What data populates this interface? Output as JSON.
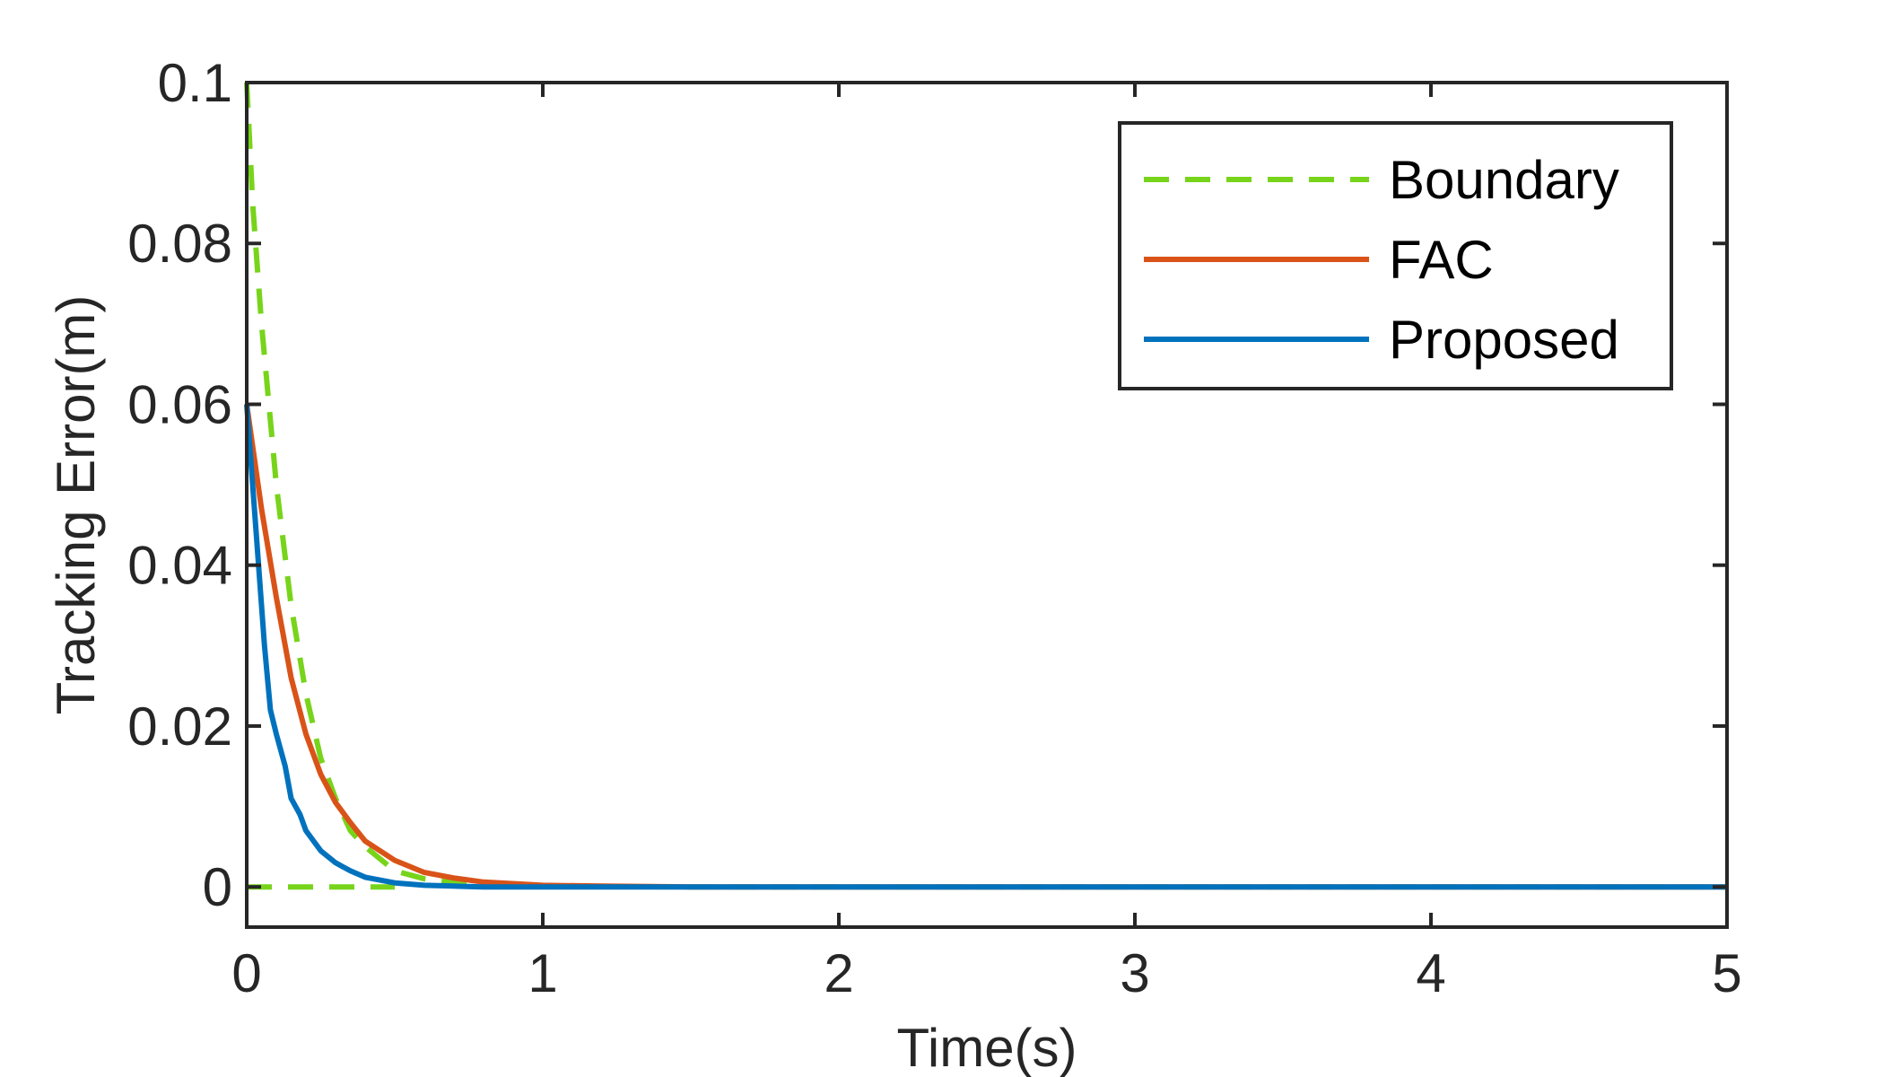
{
  "chart_data": {
    "type": "line",
    "title": "",
    "xlabel": "Time(s)",
    "ylabel": "Tracking Error(m)",
    "xlim": [
      0,
      5
    ],
    "ylim": [
      -0.005,
      0.1
    ],
    "x_ticks": [
      0,
      1,
      2,
      3,
      4,
      5
    ],
    "x_tick_labels": [
      "0",
      "1",
      "2",
      "3",
      "4",
      "5"
    ],
    "y_ticks": [
      0,
      0.02,
      0.04,
      0.06,
      0.08,
      0.1
    ],
    "y_tick_labels": [
      "0",
      "0.02",
      "0.04",
      "0.06",
      "0.08",
      "0.1"
    ],
    "grid": false,
    "legend_position": "top-right",
    "series": [
      {
        "name": "Boundary",
        "style": "dashed",
        "color": "#77d41b",
        "x": [
          0,
          0.02,
          0.05,
          0.1,
          0.15,
          0.2,
          0.25,
          0.3,
          0.35,
          0.4,
          0.5,
          0.6,
          0.7,
          0.8,
          1.0,
          1.5,
          2,
          3,
          4,
          5
        ],
        "y": [
          0.1,
          0.085,
          0.07,
          0.05,
          0.035,
          0.024,
          0.016,
          0.011,
          0.007,
          0.005,
          0.002,
          0.001,
          0.0005,
          0.0002,
          0.0001,
          0,
          0,
          0,
          0,
          0
        ]
      },
      {
        "name": "Boundary lower",
        "style": "dashed",
        "color": "#77d41b",
        "x": [
          0,
          0.5
        ],
        "y": [
          0,
          0
        ]
      },
      {
        "name": "FAC",
        "style": "solid",
        "color": "#d95319",
        "x": [
          0,
          0.05,
          0.1,
          0.15,
          0.2,
          0.25,
          0.3,
          0.35,
          0.4,
          0.5,
          0.6,
          0.7,
          0.8,
          1.0,
          1.2,
          1.5,
          2,
          3,
          4,
          5
        ],
        "y": [
          0.06,
          0.047,
          0.036,
          0.026,
          0.019,
          0.014,
          0.0105,
          0.008,
          0.0057,
          0.0033,
          0.0018,
          0.0011,
          0.0006,
          0.0002,
          0.0001,
          0,
          0,
          0,
          0,
          0
        ]
      },
      {
        "name": "Proposed",
        "style": "solid",
        "color": "#0072bd",
        "x": [
          0,
          0.03,
          0.06,
          0.08,
          0.1,
          0.13,
          0.15,
          0.18,
          0.2,
          0.25,
          0.3,
          0.35,
          0.4,
          0.5,
          0.6,
          0.7,
          0.8,
          1.0,
          1.2,
          1.5,
          2,
          3,
          4,
          5
        ],
        "y": [
          0.06,
          0.045,
          0.03,
          0.022,
          0.019,
          0.015,
          0.011,
          0.009,
          0.007,
          0.0045,
          0.003,
          0.002,
          0.0012,
          0.0005,
          0.0002,
          0.0001,
          0,
          0,
          0,
          0,
          0,
          0,
          0,
          0
        ]
      }
    ],
    "legend": [
      "Boundary",
      "FAC",
      "Proposed"
    ]
  }
}
